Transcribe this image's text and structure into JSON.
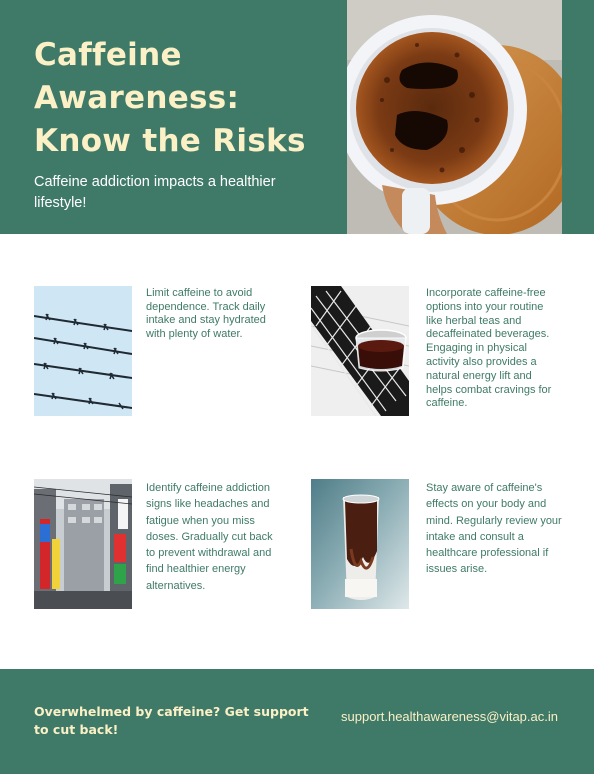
{
  "hero": {
    "title": "Caffeine Awareness: Know the Risks",
    "subtitle": "Caffeine addiction impacts a healthier lifestyle!"
  },
  "cards": [
    {
      "text": "Limit caffeine to avoid dependence. Track daily intake and stay hydrated with plenty of water."
    },
    {
      "text": "Incorporate caffeine-free options into your routine like herbal teas and decaffeinated beverages. Engaging in physical activity also provides a natural energy lift and helps combat cravings for caffeine."
    },
    {
      "text": "Identify caffeine addiction signs like headaches and fatigue when you miss doses. Gradually cut back to prevent withdrawal and find healthier energy alternatives."
    },
    {
      "text": "Stay aware of caffeine's effects on your body and mind. Regularly review your intake and consult a healthcare professional if issues arise."
    }
  ],
  "footer": {
    "cta": "Overwhelmed by caffeine? Get support to cut back!",
    "email": "support.healthawareness@vitap.ac.in"
  },
  "colors": {
    "brand_green": "#3f7a68",
    "cream": "#fbf0c6",
    "white": "#ffffff"
  }
}
